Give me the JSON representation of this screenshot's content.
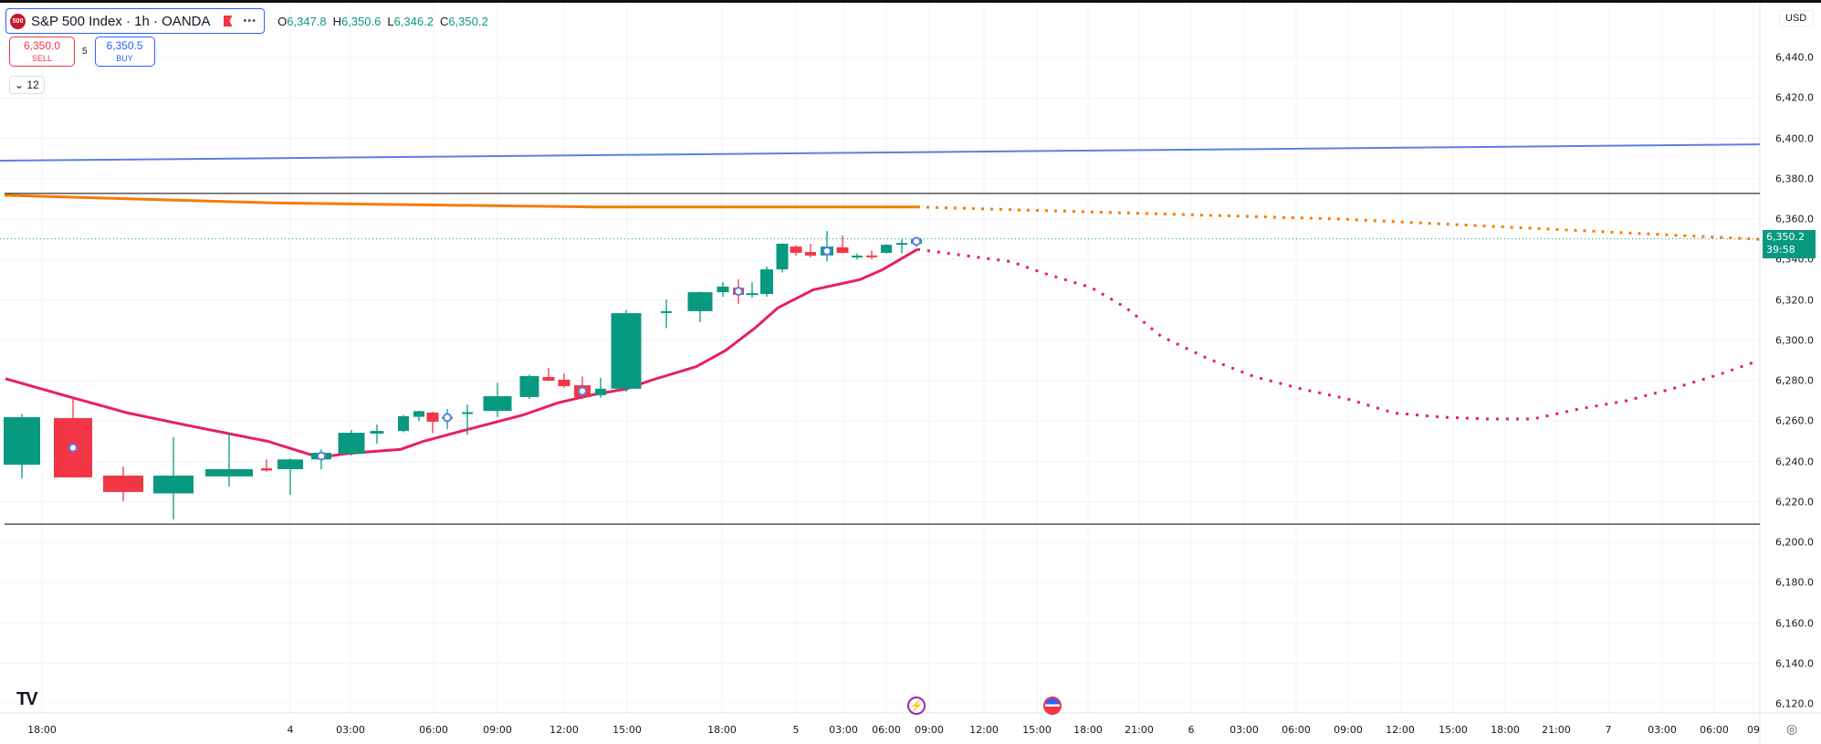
{
  "header": {
    "symbol_logo": "500",
    "title": "S&P 500 Index · 1h · OANDA",
    "more": "•••",
    "ohlc": [
      {
        "k": "O",
        "v": "6,347.8"
      },
      {
        "k": "H",
        "v": "6,350.6"
      },
      {
        "k": "L",
        "v": "6,346.2"
      },
      {
        "k": "C",
        "v": "6,350.2"
      }
    ]
  },
  "trade": {
    "sell_price": "6,350.0",
    "sell_label": "SELL",
    "spread": "5",
    "buy_price": "6,350.5",
    "buy_label": "BUY"
  },
  "indicators_toggle": "12",
  "currency": "USD",
  "last_price": {
    "price": "6,350.2",
    "countdown": "39:58"
  },
  "colors": {
    "up": "#089981",
    "down": "#f23645",
    "ma": "#e91e63",
    "orange": "#f57c00",
    "blue": "#2962ff"
  },
  "chart_data": {
    "type": "candlestick",
    "title": "S&P 500 Index · 1h · OANDA",
    "ylim": [
      6110,
      6450
    ],
    "y_ticks": [
      "6,440.0",
      "6,420.0",
      "6,400.0",
      "6,380.0",
      "6,360.0",
      "6,340.0",
      "6,320.0",
      "6,300.0",
      "6,280.0",
      "6,260.0",
      "6,240.0",
      "6,220.0",
      "6,200.0",
      "6,180.0",
      "6,160.0",
      "6,140.0",
      "6,120.0"
    ],
    "x_ticks": [
      "18:00",
      "4",
      "03:00",
      "06:00",
      "09:00",
      "12:00",
      "15:00",
      "18:00",
      "5",
      "03:00",
      "06:00",
      "09:00",
      "12:00",
      "15:00",
      "18:00",
      "21:00",
      "6",
      "03:00",
      "06:00",
      "09:00",
      "12:00",
      "15:00",
      "18:00",
      "21:00",
      "7",
      "03:00",
      "06:00",
      "09"
    ],
    "candles": [
      [
        6238.4,
        6263.5,
        6231.6,
        6261.9
      ],
      [
        6261.5,
        6272.3,
        6232.0,
        6232.1
      ],
      [
        6233.0,
        6237.5,
        6220.3,
        6224.9
      ],
      [
        6224.2,
        6252.0,
        6211.3,
        6233.0
      ],
      [
        6232.6,
        6254.2,
        6227.6,
        6236.2
      ],
      [
        6236.6,
        6241.0,
        6235.0,
        6235.5
      ],
      [
        6236.2,
        6241.5,
        6223.5,
        6241.0
      ],
      [
        6241.0,
        6246.0,
        6236.0,
        6244.3
      ],
      [
        6243.8,
        6255.6,
        6242.9,
        6254.2
      ],
      [
        6253.8,
        6258.3,
        6248.8,
        6255.1
      ],
      [
        6255.1,
        6263.0,
        6254.5,
        6262.4
      ],
      [
        6262.1,
        6265.2,
        6260.0,
        6264.9
      ],
      [
        6264.2,
        6264.6,
        6254.0,
        6259.7
      ],
      [
        6261.5,
        6266.0,
        6256.0,
        6262.0
      ],
      [
        6264.0,
        6268.2,
        6253.3,
        6264.4
      ],
      [
        6265.0,
        6279.0,
        6262.0,
        6272.3
      ],
      [
        6271.9,
        6283.0,
        6271.0,
        6282.3
      ],
      [
        6281.8,
        6286.3,
        6279.8,
        6280.0
      ],
      [
        6280.5,
        6283.5,
        6276.5,
        6277.3
      ],
      [
        6277.7,
        6282.0,
        6271.0,
        6271.9
      ],
      [
        6272.8,
        6281.4,
        6271.5,
        6276.0
      ],
      [
        6276.0,
        6315.0,
        6274.5,
        6313.4
      ],
      [
        6314.0,
        6320.2,
        6306.0,
        6314.4
      ],
      [
        6314.4,
        6324.0,
        6309.0,
        6323.8
      ],
      [
        6323.8,
        6328.8,
        6321.5,
        6326.6
      ],
      [
        6326.0,
        6330.2,
        6318.0,
        6322.5
      ],
      [
        6322.5,
        6328.8,
        6321.0,
        6323.3
      ],
      [
        6322.9,
        6336.5,
        6321.5,
        6335.1
      ],
      [
        6335.1,
        6348.0,
        6333.5,
        6347.8
      ],
      [
        6346.4,
        6347.0,
        6342.0,
        6343.3
      ],
      [
        6343.7,
        6347.8,
        6341.0,
        6341.9
      ],
      [
        6342.0,
        6354.1,
        6339.0,
        6346.4
      ],
      [
        6346.0,
        6351.9,
        6343.0,
        6343.3
      ],
      [
        6341.5,
        6343.0,
        6340.0,
        6341.9
      ],
      [
        6342.0,
        6344.5,
        6340.0,
        6341.5
      ],
      [
        6343.3,
        6347.5,
        6343.0,
        6347.3
      ],
      [
        6347.5,
        6350.0,
        6343.0,
        6348.2
      ],
      [
        6347.8,
        6350.6,
        6346.2,
        6350.2
      ]
    ],
    "horizontal_lines": [
      6372.7,
      6209.0
    ],
    "blue_trendline": [
      6388.9,
      6397.0
    ],
    "ma_series": [
      6281,
      6272,
      6264,
      6258,
      6250,
      6242,
      6244,
      6246,
      6250,
      6257,
      6263,
      6269,
      6273,
      6276,
      6280,
      6287,
      6295,
      6306,
      6316,
      6325,
      6330,
      6335,
      6345
    ],
    "ma_forecast": [
      6345,
      6342,
      6339,
      6333,
      6326,
      6316,
      6302,
      6291,
      6282,
      6276,
      6271,
      6264,
      6262,
      6261,
      6261,
      6266,
      6270,
      6276,
      6283,
      6289
    ],
    "orange_series": [
      6371.8,
      6368,
      6366,
      6366,
      6366
    ],
    "orange_forecast": [
      6366,
      6360,
      6350
    ]
  }
}
